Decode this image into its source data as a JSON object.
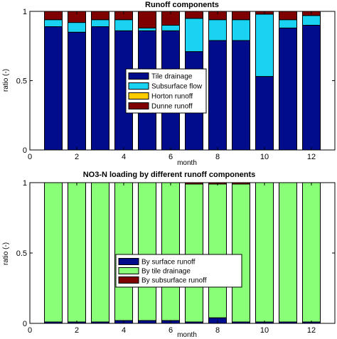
{
  "chart_data": [
    {
      "type": "bar",
      "stacked": true,
      "title": "Runoff components",
      "xlabel": "month",
      "ylabel": "ratio (-)",
      "ylim": [
        0,
        1
      ],
      "xlim": [
        0,
        13
      ],
      "categories": [
        1,
        2,
        3,
        4,
        5,
        6,
        7,
        8,
        9,
        10,
        11,
        12
      ],
      "x_ticks": [
        0,
        2,
        4,
        6,
        8,
        10,
        12
      ],
      "y_ticks": [
        0,
        0.5,
        1
      ],
      "y_tick_labels": [
        "0",
        "0.5",
        "1"
      ],
      "grid": false,
      "legend_position": "center",
      "series": [
        {
          "name": "Tile drainage",
          "color": "#000c8c",
          "values": [
            0.89,
            0.85,
            0.89,
            0.86,
            0.86,
            0.86,
            0.71,
            0.79,
            0.79,
            0.53,
            0.88,
            0.9
          ]
        },
        {
          "name": "Subsurface flow",
          "color": "#1ad3f2",
          "values": [
            0.05,
            0.07,
            0.05,
            0.08,
            0.02,
            0.04,
            0.24,
            0.15,
            0.15,
            0.45,
            0.06,
            0.07
          ]
        },
        {
          "name": "Horton runoff",
          "color": "#ffcc00",
          "values": [
            0,
            0,
            0,
            0,
            0,
            0,
            0,
            0,
            0,
            0,
            0,
            0
          ]
        },
        {
          "name": "Dunne runoff",
          "color": "#7f0000",
          "values": [
            0.06,
            0.08,
            0.06,
            0.06,
            0.12,
            0.1,
            0.05,
            0.06,
            0.06,
            0.02,
            0.06,
            0.03
          ]
        }
      ]
    },
    {
      "type": "bar",
      "stacked": true,
      "title": "NO3-N loading by different runoff components",
      "xlabel": "month",
      "ylabel": "ratio (-)",
      "ylim": [
        0,
        1
      ],
      "xlim": [
        0,
        13
      ],
      "categories": [
        1,
        2,
        3,
        4,
        5,
        6,
        7,
        8,
        9,
        10,
        11,
        12
      ],
      "x_ticks": [
        0,
        2,
        4,
        6,
        8,
        10,
        12
      ],
      "y_ticks": [
        0,
        0.5,
        1
      ],
      "y_tick_labels": [
        "0",
        "0.5",
        "1"
      ],
      "grid": false,
      "legend_position": "center",
      "series": [
        {
          "name": "By surface runoff",
          "color": "#000c8c",
          "values": [
            0.01,
            0.01,
            0.01,
            0.02,
            0.02,
            0.02,
            0.01,
            0.04,
            0.01,
            0.01,
            0.01,
            0.01
          ]
        },
        {
          "name": "By tile drainage",
          "color": "#88ff77",
          "values": [
            0.99,
            0.99,
            0.99,
            0.98,
            0.98,
            0.98,
            0.98,
            0.95,
            0.98,
            0.99,
            0.99,
            0.99
          ]
        },
        {
          "name": "By subsurface runoff",
          "color": "#7f0000",
          "values": [
            0,
            0,
            0,
            0,
            0,
            0,
            0.01,
            0.01,
            0.01,
            0,
            0,
            0
          ]
        }
      ]
    }
  ]
}
